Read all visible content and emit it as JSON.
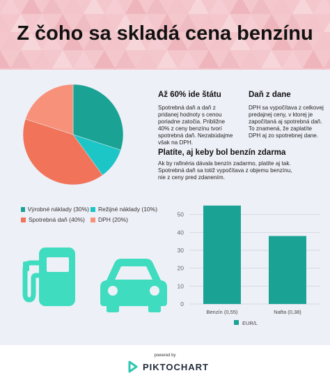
{
  "header": {
    "title": "Z čoho sa skladá cena benzínu"
  },
  "colors": {
    "teal": "#1aa394",
    "cyan": "#1cc5c6",
    "salmon": "#f0735a",
    "peach": "#f7917a",
    "mint": "#3fdcc0",
    "header_bg": "#f3c7cc",
    "panel_bg": "#eef0f7"
  },
  "pie": {
    "legend": [
      {
        "label": "Výrobné náklady (30%)",
        "color": "#1aa394",
        "value": 30
      },
      {
        "label": "Režijné náklady (10%)",
        "color": "#1cc5c6",
        "value": 10
      },
      {
        "label": "Spotrebná daň (40%)",
        "color": "#f0735a",
        "value": 40
      },
      {
        "label": "DPH (20%)",
        "color": "#f7917a",
        "value": 20
      }
    ]
  },
  "text_blocks": {
    "state": {
      "title": "Až 60% ide štátu",
      "lines": [
        "Spotrebná daň a daň z",
        "pridanej hodnoty  s cenou",
        "poriadne zatočia. Približne",
        "40% z ceny benzínu tvorí",
        "spotrebná daň. Nezabúdajme",
        "však na DPH."
      ]
    },
    "tax": {
      "title": "Daň z dane",
      "lines": [
        "DPH sa vypočítava z celkovej",
        "predajnej ceny, v ktorej je",
        "započítaná aj spotrebná daň.",
        "To znamená, že zaplatíte",
        "DPH aj zo spotrebnej dane."
      ]
    },
    "free": {
      "title": "Platíte, aj keby bol benzín zdarma",
      "lines": [
        "Ak by rafinéria dávala benzín zadarmo, platíte aj tak.",
        "Spotrebná daň sa totiž vypočítava z objemu benzínu,",
        "nie z ceny pred zdanením."
      ]
    }
  },
  "chart_data": [
    {
      "type": "pie",
      "categories": [
        "Výrobné náklady",
        "Režijné náklady",
        "Spotrebná daň",
        "DPH"
      ],
      "values": [
        30,
        10,
        40,
        20
      ],
      "colors": [
        "#1aa394",
        "#1cc5c6",
        "#f0735a",
        "#f7917a"
      ]
    },
    {
      "type": "bar",
      "categories": [
        "Benzín (0,55)",
        "Nafta (0,38)"
      ],
      "series": [
        {
          "name": "EUR/L",
          "values": [
            0.55,
            0.38
          ]
        }
      ],
      "ylim": [
        0,
        0.6
      ],
      "yticks": [
        "0",
        "10",
        "20",
        "30",
        "40",
        "50"
      ],
      "color": "#1aa394",
      "grid": true,
      "legend": "bottom"
    }
  ],
  "icons": [
    "fuel-pump-icon",
    "car-icon"
  ],
  "footer": {
    "powered_by": "powered by",
    "brand": "PIKTOCHART"
  }
}
